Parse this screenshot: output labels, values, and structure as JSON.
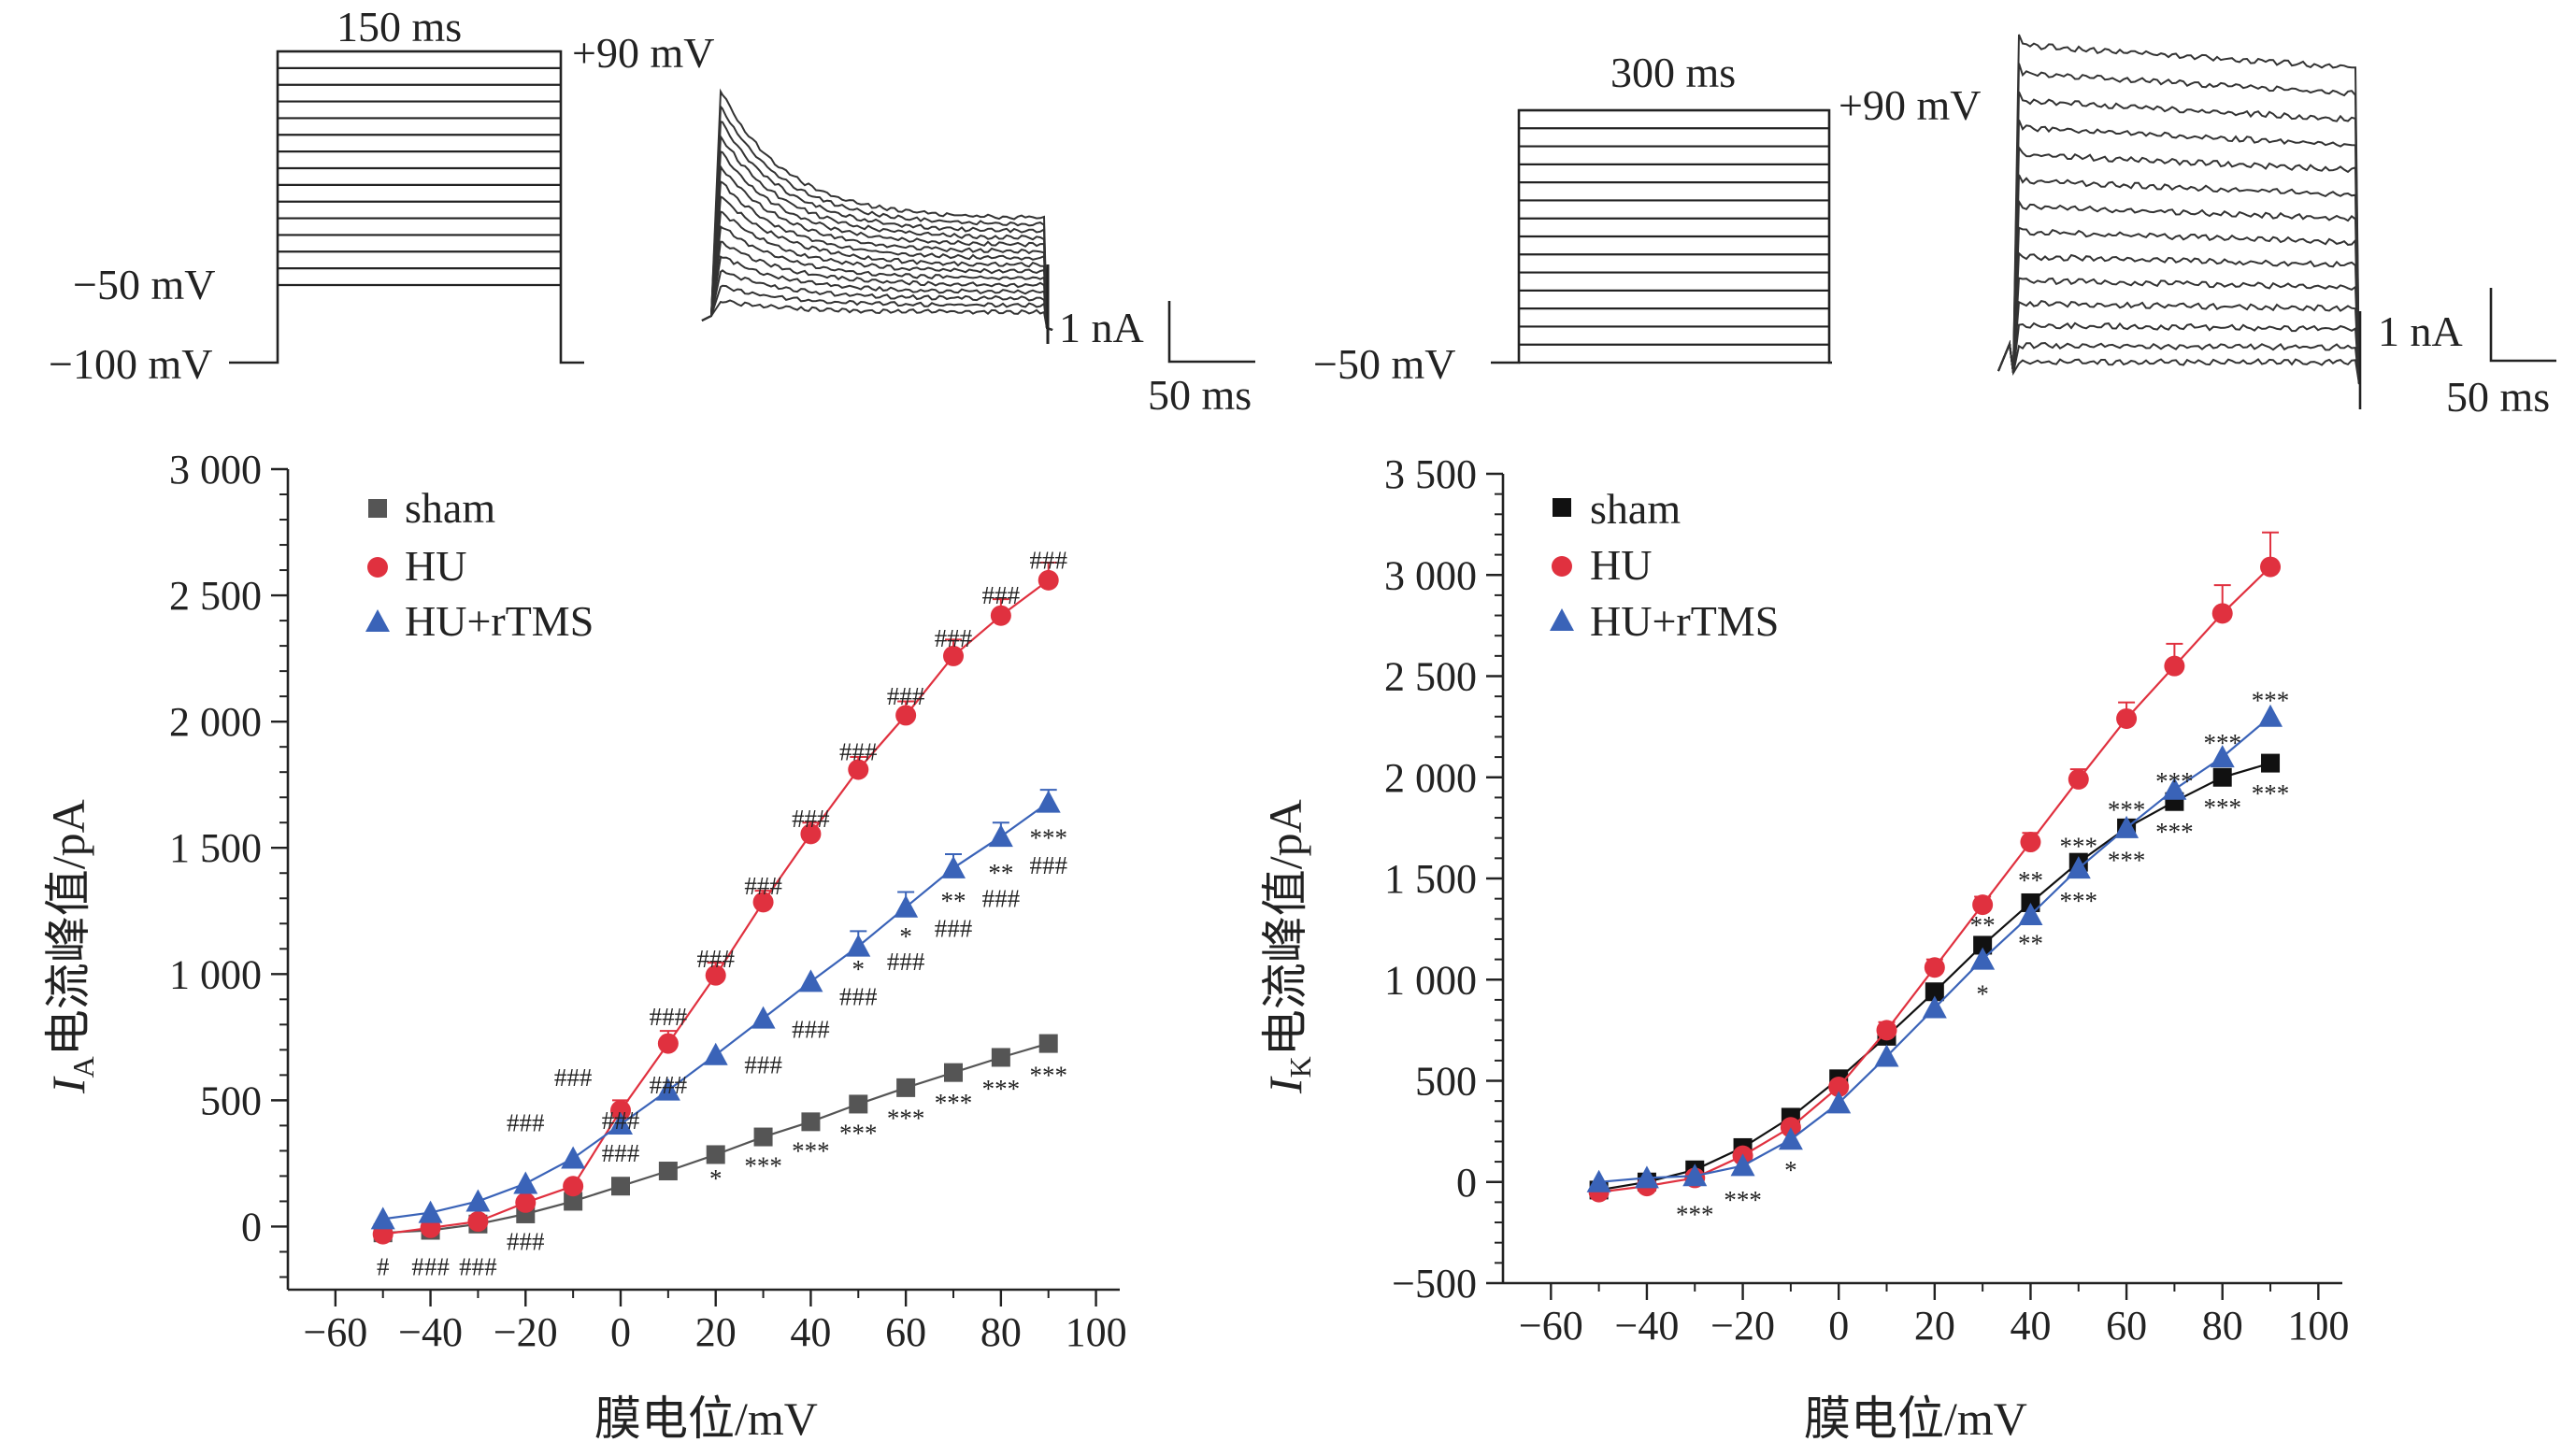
{
  "protocol_left": {
    "duration_label": "150 ms",
    "top_label": "+90 mV",
    "mid_label": "−50 mV",
    "bottom_label": "−100 mV",
    "scale_y_label": "1 nA",
    "scale_x_label": "50 ms"
  },
  "protocol_right": {
    "duration_label": "300 ms",
    "top_label": "+90 mV",
    "bottom_label": "−50 mV",
    "scale_y_label": "1 nA",
    "scale_x_label": "50 ms"
  },
  "colors": {
    "sham_left": "#555555",
    "sham_right": "#111111",
    "HU": "#e0313f",
    "HU_rTMS": "#3a63b8"
  },
  "legend_left": [
    "sham",
    "HU",
    "HU+rTMS"
  ],
  "legend_right": [
    "sham",
    "HU",
    "HU+rTMS"
  ],
  "chart_data": [
    {
      "type": "line",
      "title": "",
      "xlabel": "膜电位/mV",
      "ylabel": "I",
      "ylabel_sub": "A",
      "ylabel_suffix": "电流峰值/pA",
      "xlim": [
        -70,
        105
      ],
      "ylim": [
        -250,
        3000
      ],
      "x_ticks": [
        -60,
        -40,
        -20,
        0,
        20,
        40,
        60,
        80,
        100
      ],
      "x_tick_labels": [
        "−60",
        "−40",
        "−20",
        "0",
        "20",
        "40",
        "60",
        "80",
        "100"
      ],
      "y_ticks": [
        0,
        500,
        1000,
        1500,
        2000,
        2500,
        3000
      ],
      "y_tick_labels": [
        "0",
        "500",
        "1 000",
        "1 500",
        "2 000",
        "2 500",
        "3 000"
      ],
      "x": [
        -50,
        -40,
        -30,
        -20,
        -10,
        0,
        10,
        20,
        30,
        40,
        50,
        60,
        70,
        80,
        90
      ],
      "series": [
        {
          "name": "sham",
          "marker": "square",
          "values": [
            -25,
            -15,
            10,
            50,
            100,
            160,
            220,
            285,
            355,
            415,
            485,
            550,
            610,
            670,
            725
          ]
        },
        {
          "name": "HU",
          "marker": "circle",
          "errors": [
            0,
            0,
            0,
            0,
            0,
            40,
            50,
            50,
            45,
            45,
            50,
            55,
            65,
            65,
            70
          ],
          "values": [
            -30,
            -5,
            20,
            95,
            160,
            460,
            725,
            995,
            1285,
            1555,
            1810,
            2025,
            2260,
            2420,
            2560
          ]
        },
        {
          "name": "HU+rTMS",
          "marker": "triangle",
          "errors": [
            0,
            0,
            0,
            0,
            0,
            0,
            0,
            0,
            0,
            0,
            60,
            60,
            55,
            55,
            50
          ],
          "values": [
            30,
            55,
            100,
            170,
            270,
            405,
            540,
            680,
            825,
            970,
            1110,
            1265,
            1420,
            1545,
            1680
          ]
        }
      ],
      "annotations": [
        {
          "x": -50,
          "y": -160,
          "text": "#"
        },
        {
          "x": -40,
          "y": -160,
          "text": "###"
        },
        {
          "x": -30,
          "y": -160,
          "text": "###"
        },
        {
          "x": -20,
          "y": -60,
          "text": "###"
        },
        {
          "x": -20,
          "y": 410,
          "text": "###"
        },
        {
          "x": -10,
          "y": 590,
          "text": "###"
        },
        {
          "x": 0,
          "y": 290,
          "text": "###"
        },
        {
          "x": 0,
          "y": 420,
          "text": "###"
        },
        {
          "x": 10,
          "y": 560,
          "text": "###"
        },
        {
          "x": 10,
          "y": 830,
          "text": "###"
        },
        {
          "x": 20,
          "y": 1060,
          "text": "###"
        },
        {
          "x": 30,
          "y": 1350,
          "text": "###"
        },
        {
          "x": 40,
          "y": 1615,
          "text": "###"
        },
        {
          "x": 50,
          "y": 1880,
          "text": "###"
        },
        {
          "x": 60,
          "y": 2100,
          "text": "###"
        },
        {
          "x": 70,
          "y": 2330,
          "text": "###"
        },
        {
          "x": 80,
          "y": 2500,
          "text": "###"
        },
        {
          "x": 90,
          "y": 2640,
          "text": "###"
        },
        {
          "x": 30,
          "y": 640,
          "text": "###"
        },
        {
          "x": 40,
          "y": 780,
          "text": "###"
        },
        {
          "x": 50,
          "y": 910,
          "text": "###"
        },
        {
          "x": 60,
          "y": 1050,
          "text": "###"
        },
        {
          "x": 70,
          "y": 1180,
          "text": "###"
        },
        {
          "x": 80,
          "y": 1300,
          "text": "###"
        },
        {
          "x": 90,
          "y": 1430,
          "text": "###"
        },
        {
          "x": 50,
          "y": 1020,
          "text": "*"
        },
        {
          "x": 60,
          "y": 1150,
          "text": "*"
        },
        {
          "x": 70,
          "y": 1290,
          "text": "**"
        },
        {
          "x": 80,
          "y": 1400,
          "text": "**"
        },
        {
          "x": 90,
          "y": 1540,
          "text": "***"
        },
        {
          "x": 20,
          "y": 190,
          "text": "*"
        },
        {
          "x": 30,
          "y": 240,
          "text": "***"
        },
        {
          "x": 40,
          "y": 300,
          "text": "***"
        },
        {
          "x": 50,
          "y": 370,
          "text": "***"
        },
        {
          "x": 60,
          "y": 430,
          "text": "***"
        },
        {
          "x": 70,
          "y": 490,
          "text": "***"
        },
        {
          "x": 80,
          "y": 545,
          "text": "***"
        },
        {
          "x": 90,
          "y": 600,
          "text": "***"
        }
      ]
    },
    {
      "type": "line",
      "title": "",
      "xlabel": "膜电位/mV",
      "ylabel": "I",
      "ylabel_sub": "K",
      "ylabel_suffix": "电流峰值/pA",
      "xlim": [
        -70,
        105
      ],
      "ylim": [
        -500,
        3500
      ],
      "x_ticks": [
        -60,
        -40,
        -20,
        0,
        20,
        40,
        60,
        80,
        100
      ],
      "x_tick_labels": [
        "−60",
        "−40",
        "−20",
        "0",
        "20",
        "40",
        "60",
        "80",
        "100"
      ],
      "y_ticks": [
        -500,
        0,
        500,
        1000,
        1500,
        2000,
        2500,
        3000,
        3500
      ],
      "y_tick_labels": [
        "−500",
        "0",
        "500",
        "1 000",
        "1 500",
        "2 000",
        "2 500",
        "3 000",
        "3 500"
      ],
      "x": [
        -50,
        -40,
        -30,
        -20,
        -10,
        0,
        10,
        20,
        30,
        40,
        50,
        60,
        70,
        80,
        90
      ],
      "series": [
        {
          "name": "sham",
          "marker": "square",
          "values": [
            -40,
            0,
            60,
            170,
            320,
            510,
            720,
            940,
            1170,
            1380,
            1580,
            1750,
            1880,
            2000,
            2070
          ]
        },
        {
          "name": "HU",
          "marker": "circle",
          "errors": [
            0,
            0,
            0,
            0,
            0,
            0,
            40,
            40,
            40,
            45,
            50,
            80,
            110,
            140,
            170
          ],
          "values": [
            -50,
            -20,
            20,
            130,
            270,
            470,
            750,
            1060,
            1370,
            1680,
            1990,
            2290,
            2550,
            2810,
            3040
          ]
        },
        {
          "name": "HU+rTMS",
          "marker": "triangle",
          "values": [
            0,
            20,
            30,
            80,
            210,
            390,
            620,
            860,
            1100,
            1320,
            1550,
            1750,
            1940,
            2100,
            2300
          ]
        }
      ],
      "annotations": [
        {
          "x": -30,
          "y": -160,
          "text": "***"
        },
        {
          "x": -20,
          "y": -90,
          "text": "***"
        },
        {
          "x": -10,
          "y": 60,
          "text": "*"
        },
        {
          "x": 30,
          "y": 1270,
          "text": "**"
        },
        {
          "x": 30,
          "y": 930,
          "text": "*"
        },
        {
          "x": 40,
          "y": 1490,
          "text": "**"
        },
        {
          "x": 40,
          "y": 1180,
          "text": "**"
        },
        {
          "x": 50,
          "y": 1660,
          "text": "***"
        },
        {
          "x": 50,
          "y": 1390,
          "text": "***"
        },
        {
          "x": 60,
          "y": 1840,
          "text": "***"
        },
        {
          "x": 60,
          "y": 1590,
          "text": "***"
        },
        {
          "x": 70,
          "y": 1980,
          "text": "***"
        },
        {
          "x": 70,
          "y": 1730,
          "text": "***"
        },
        {
          "x": 80,
          "y": 2170,
          "text": "***"
        },
        {
          "x": 80,
          "y": 1850,
          "text": "***"
        },
        {
          "x": 90,
          "y": 2380,
          "text": "***"
        },
        {
          "x": 90,
          "y": 1920,
          "text": "***"
        }
      ]
    }
  ]
}
